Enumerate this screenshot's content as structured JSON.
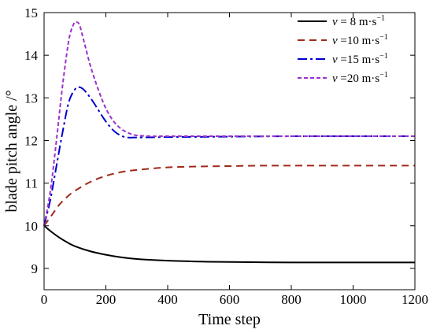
{
  "chart_data": {
    "type": "line",
    "xlabel": "Time step",
    "ylabel": "blade pitch angle /°",
    "xlim": [
      0,
      1200
    ],
    "ylim": [
      8.5,
      15
    ],
    "xticks": [
      0,
      200,
      400,
      600,
      800,
      1000,
      1200
    ],
    "yticks": [
      9,
      10,
      11,
      12,
      13,
      14,
      15
    ],
    "grid": false,
    "legend_position": "top-right",
    "series": [
      {
        "name": "v = 8 m·s−1",
        "label_var": "v",
        "label_rest": " = 8 m·s",
        "label_sup": "−1",
        "color": "#000000",
        "dash": "",
        "x": [
          0,
          25,
          50,
          75,
          100,
          150,
          200,
          250,
          300,
          400,
          500,
          600,
          800,
          1000,
          1200
        ],
        "y": [
          10.0,
          9.85,
          9.72,
          9.61,
          9.52,
          9.4,
          9.32,
          9.26,
          9.22,
          9.18,
          9.16,
          9.15,
          9.14,
          9.14,
          9.14
        ]
      },
      {
        "name": "v =10 m·s−1",
        "label_var": "v",
        "label_rest": " =10 m·s",
        "label_sup": "−1",
        "color": "#a0281a",
        "dash": "9,6",
        "x": [
          0,
          25,
          50,
          75,
          100,
          150,
          200,
          250,
          300,
          400,
          500,
          600,
          700,
          800,
          1000,
          1200
        ],
        "y": [
          10.0,
          10.25,
          10.5,
          10.68,
          10.82,
          11.03,
          11.17,
          11.26,
          11.31,
          11.37,
          11.39,
          11.4,
          11.41,
          11.41,
          11.41,
          11.41
        ]
      },
      {
        "name": "v =15 m·s−1",
        "label_var": "v",
        "label_rest": " =15 m·s",
        "label_sup": "−1",
        "color": "#0000cc",
        "dash": "12,4,3,4",
        "x": [
          0,
          20,
          40,
          60,
          80,
          100,
          115,
          130,
          150,
          170,
          190,
          210,
          230,
          250,
          270,
          300,
          400,
          600,
          800,
          1000,
          1200
        ],
        "y": [
          10.0,
          10.6,
          11.4,
          12.2,
          12.9,
          13.2,
          13.25,
          13.18,
          13.0,
          12.78,
          12.55,
          12.35,
          12.2,
          12.11,
          12.07,
          12.07,
          12.08,
          12.09,
          12.1,
          12.1,
          12.1
        ]
      },
      {
        "name": "v =20 m·s−1",
        "label_var": "v",
        "label_rest": " =20 m·s",
        "label_sup": "−1",
        "color": "#9932cc",
        "dash": "5,3",
        "x": [
          0,
          20,
          40,
          60,
          80,
          95,
          105,
          115,
          130,
          150,
          175,
          200,
          225,
          250,
          275,
          300,
          350,
          400,
          600,
          800,
          1000,
          1200
        ],
        "y": [
          10.0,
          10.8,
          12.0,
          13.3,
          14.35,
          14.72,
          14.78,
          14.7,
          14.3,
          13.75,
          13.2,
          12.75,
          12.45,
          12.27,
          12.17,
          12.12,
          12.1,
          12.1,
          12.1,
          12.1,
          12.1,
          12.1
        ]
      }
    ]
  }
}
